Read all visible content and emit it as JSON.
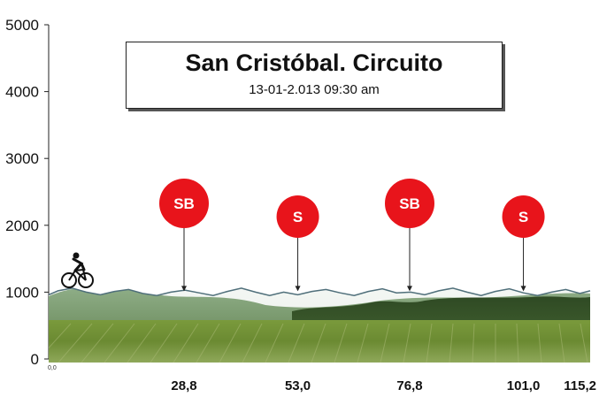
{
  "title": "San Cristóbal. Circuito",
  "subtitle": "13-01-2.013      09:30 am",
  "chart_data": {
    "type": "area",
    "title": "San Cristóbal. Circuito",
    "subtitle": "13-01-2.013      09:30 am",
    "xlabel": "",
    "ylabel": "",
    "ylim": [
      0,
      5000
    ],
    "y_ticks": [
      "0",
      "1000",
      "2000",
      "3000",
      "4000",
      "5000"
    ],
    "xlim": [
      0,
      115.2
    ],
    "x_origin_label": "0,0",
    "x_tick_values": [
      28.8,
      53.0,
      76.8,
      101.0,
      115.2
    ],
    "x_ticks": [
      "28,8",
      "53,0",
      "76,8",
      "101,0",
      "115,2"
    ],
    "profile": {
      "x": [
        0,
        2,
        5,
        8,
        11,
        14,
        17,
        20,
        23,
        26,
        29,
        32,
        35,
        38,
        41,
        44,
        47,
        50,
        53,
        56,
        59,
        62,
        65,
        68,
        71,
        74,
        77,
        80,
        83,
        86,
        89,
        92,
        95,
        98,
        101,
        104,
        107,
        110,
        113,
        115.2
      ],
      "y": [
        960,
        1020,
        1060,
        1000,
        960,
        1010,
        1040,
        980,
        950,
        1000,
        1030,
        990,
        950,
        1010,
        1060,
        1000,
        950,
        1000,
        960,
        1010,
        1040,
        990,
        950,
        1010,
        1050,
        990,
        1000,
        960,
        1020,
        1060,
        1000,
        950,
        1010,
        1050,
        990,
        950,
        1000,
        1040,
        980,
        1020
      ]
    },
    "markers": [
      {
        "label": "SB",
        "x": 28.8,
        "color": "#e8141b"
      },
      {
        "label": "S",
        "x": 53.0,
        "color": "#e8141b"
      },
      {
        "label": "SB",
        "x": 76.8,
        "color": "#e8141b"
      },
      {
        "label": "S",
        "x": 101.0,
        "color": "#e8141b"
      }
    ],
    "grid": false,
    "legend": "none"
  }
}
